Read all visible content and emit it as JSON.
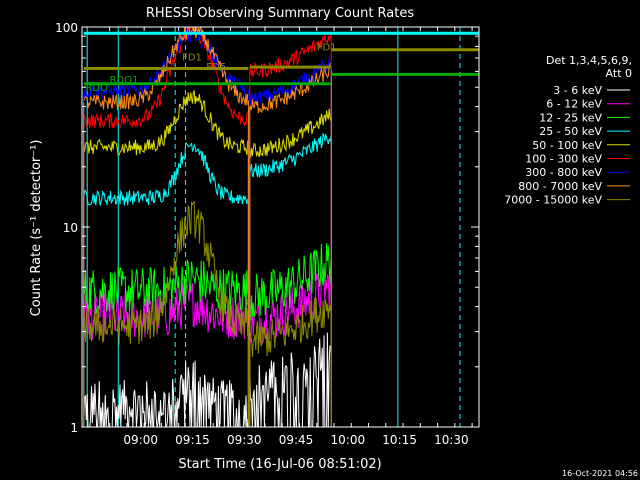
{
  "chart_data": {
    "type": "line",
    "title": "RHESSI Observing Summary Count Rates",
    "xlabel": "Start Time (16-Jul-06 08:51:02)",
    "ylabel": "Count Rate (s⁻¹ detector⁻¹)",
    "y_scale": "log",
    "ylim": [
      1,
      100
    ],
    "xlim_minutes": [
      -8,
      107
    ],
    "x_ticks": [
      {
        "minutes": 9,
        "label": "09:00"
      },
      {
        "minutes": 24,
        "label": "09:15"
      },
      {
        "minutes": 39,
        "label": "09:30"
      },
      {
        "minutes": 54,
        "label": "09:45"
      },
      {
        "minutes": 69,
        "label": "10:00"
      },
      {
        "minutes": 84,
        "label": "10:15"
      },
      {
        "minutes": 99,
        "label": "10:30"
      }
    ],
    "y_ticks": [
      {
        "value": 1,
        "label": "1"
      },
      {
        "value": 10,
        "label": "10"
      },
      {
        "value": 100,
        "label": "100"
      }
    ],
    "legend_title": [
      "Det 1,3,4,5,6,9,",
      "Att 0"
    ],
    "legend_position": "right",
    "series": [
      {
        "name": "3 - 6 keV",
        "color": "#ffffff"
      },
      {
        "name": "6 - 12 keV",
        "color": "#ff00ff"
      },
      {
        "name": "12 - 25 keV",
        "color": "#00ff00"
      },
      {
        "name": "25 - 50 keV",
        "color": "#00ffff"
      },
      {
        "name": "50 - 100 keV",
        "color": "#dddd00"
      },
      {
        "name": "100 - 300 keV",
        "color": "#ff0000"
      },
      {
        "name": "300 - 800 keV",
        "color": "#0000ff"
      },
      {
        "name": "800 - 7000 keV",
        "color": "#ff8c1a"
      },
      {
        "name": "7000 - 15000 keV",
        "color": "#8b8b00"
      }
    ],
    "annotations": [
      "FD1",
      "FD5",
      "FD1",
      "RDO1",
      "RDO"
    ],
    "timestamp": "16-Oct-2021 04:56"
  }
}
